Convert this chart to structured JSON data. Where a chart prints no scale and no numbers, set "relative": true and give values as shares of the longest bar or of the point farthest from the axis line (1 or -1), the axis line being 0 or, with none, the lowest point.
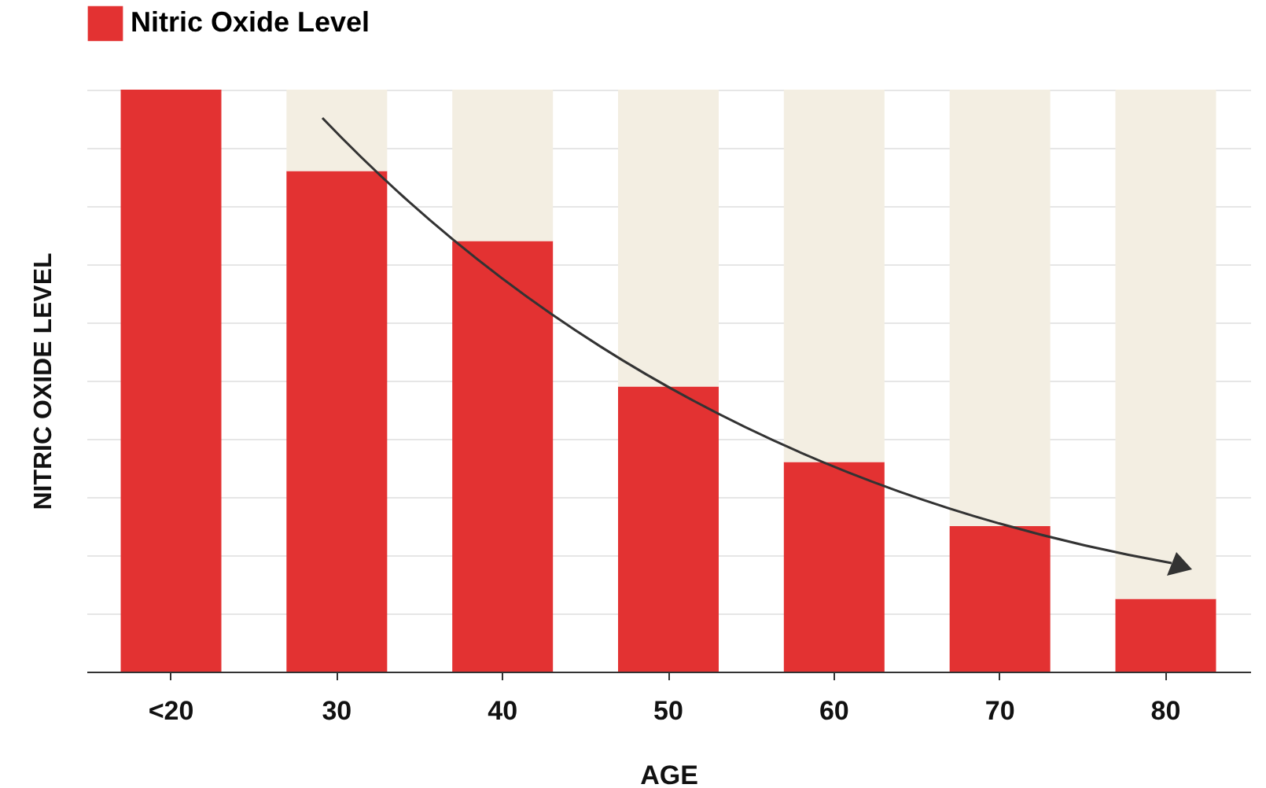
{
  "chart_data": {
    "type": "bar",
    "relative": true,
    "stacked": true,
    "xlabel": "AGE",
    "ylabel": "NITRIC OXIDE LEVEL",
    "categories": [
      "<20",
      "30",
      "40",
      "50",
      "60",
      "70",
      "80"
    ],
    "series": [
      {
        "name": "Nitric Oxide Level",
        "color": "#e33232",
        "values": [
          1,
          0.86,
          0.74,
          0.49,
          0.36,
          0.25,
          0.125
        ]
      },
      {
        "color": "#f3eee2",
        "values": [
          0,
          0.14,
          0.26,
          0.51,
          0.64,
          0.75,
          0.875
        ]
      }
    ],
    "grid": "y",
    "legend": "top"
  }
}
